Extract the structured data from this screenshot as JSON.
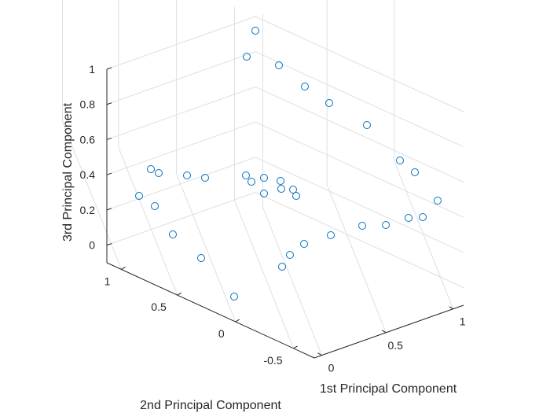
{
  "chart_data": {
    "type": "scatter",
    "projection": "3d",
    "title": "",
    "xlabel": "1st Principal Component",
    "ylabel": "2nd Principal Component",
    "zlabel": "3rd Principal Component",
    "xticks": [
      "0",
      "0.5",
      "1"
    ],
    "yticks": [
      "-0.5",
      "0",
      "0.5",
      "1"
    ],
    "zticks": [
      "0",
      "0.2",
      "0.4",
      "0.6",
      "0.8",
      "1"
    ],
    "grid": true,
    "legend": false,
    "marker": "circle",
    "marker_color": "#0072bd",
    "screen_points": [
      [
        325,
        39
      ],
      [
        314,
        72
      ],
      [
        355,
        83
      ],
      [
        388,
        110
      ],
      [
        419,
        131
      ],
      [
        467,
        159
      ],
      [
        509,
        204
      ],
      [
        528,
        219
      ],
      [
        557,
        255
      ],
      [
        538,
        276
      ],
      [
        520,
        277
      ],
      [
        491,
        286
      ],
      [
        461,
        287
      ],
      [
        421,
        299
      ],
      [
        387,
        310
      ],
      [
        369,
        324
      ],
      [
        359,
        339
      ],
      [
        298,
        377
      ],
      [
        256,
        328
      ],
      [
        220,
        298
      ],
      [
        197,
        262
      ],
      [
        177,
        249
      ],
      [
        192,
        215
      ],
      [
        202,
        220
      ],
      [
        238,
        223
      ],
      [
        261,
        226
      ],
      [
        313,
        223
      ],
      [
        320,
        231
      ],
      [
        336,
        226
      ],
      [
        336,
        246
      ],
      [
        357,
        230
      ],
      [
        358,
        240
      ],
      [
        373,
        241
      ],
      [
        377,
        249
      ]
    ]
  }
}
